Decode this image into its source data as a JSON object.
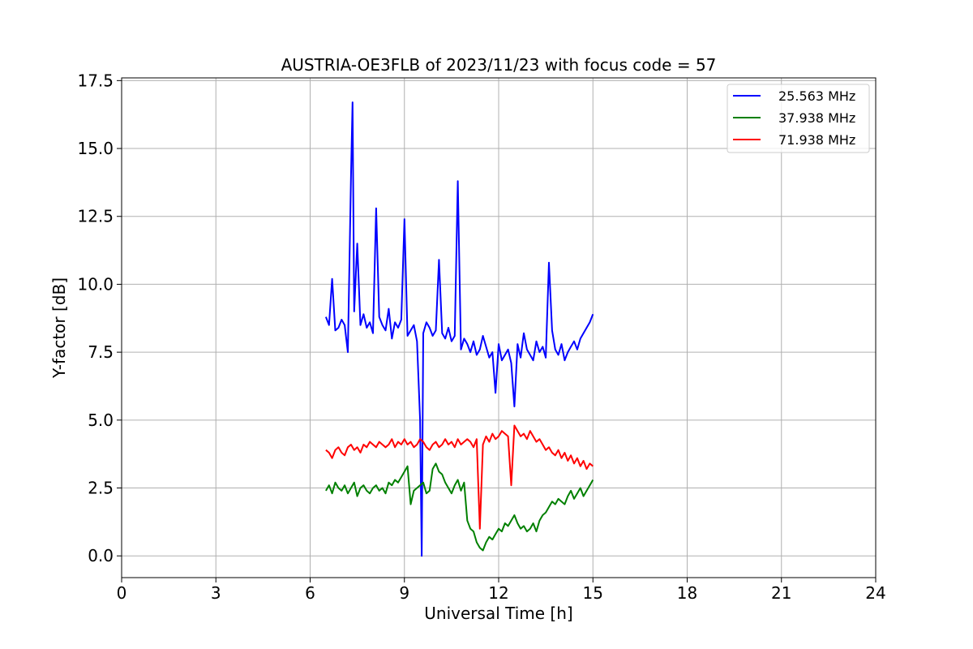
{
  "chart_data": {
    "type": "line",
    "title": "AUSTRIA-OE3FLB of 2023/11/23 with focus code = 57",
    "xlabel": "Universal Time [h]",
    "ylabel": "Y-factor [dB]",
    "xlim": [
      0,
      24
    ],
    "ylim": [
      -0.8,
      17.6
    ],
    "xticks": [
      0,
      3,
      6,
      9,
      12,
      15,
      18,
      21,
      24
    ],
    "xtick_labels": [
      "0",
      "3",
      "6",
      "9",
      "12",
      "15",
      "18",
      "21",
      "24"
    ],
    "yticks": [
      0.0,
      2.5,
      5.0,
      7.5,
      10.0,
      12.5,
      15.0,
      17.5
    ],
    "ytick_labels": [
      "0.0",
      "2.5",
      "5.0",
      "7.5",
      "10.0",
      "12.5",
      "15.0",
      "17.5"
    ],
    "grid": true,
    "legend_position": "top-right",
    "series": [
      {
        "name": "25.563 MHz",
        "color": "#0000ff",
        "x": [
          6.5,
          6.6,
          6.7,
          6.8,
          6.9,
          7.0,
          7.1,
          7.2,
          7.3,
          7.35,
          7.4,
          7.5,
          7.6,
          7.7,
          7.8,
          7.9,
          8.0,
          8.1,
          8.2,
          8.3,
          8.4,
          8.5,
          8.6,
          8.7,
          8.8,
          8.9,
          9.0,
          9.1,
          9.2,
          9.3,
          9.4,
          9.5,
          9.55,
          9.6,
          9.7,
          9.8,
          9.9,
          10.0,
          10.1,
          10.2,
          10.3,
          10.4,
          10.5,
          10.6,
          10.7,
          10.8,
          10.9,
          11.0,
          11.1,
          11.2,
          11.3,
          11.4,
          11.5,
          11.6,
          11.7,
          11.8,
          11.9,
          12.0,
          12.1,
          12.2,
          12.3,
          12.4,
          12.5,
          12.6,
          12.7,
          12.8,
          12.9,
          13.0,
          13.1,
          13.2,
          13.3,
          13.4,
          13.5,
          13.6,
          13.7,
          13.8,
          13.9,
          14.0,
          14.1,
          14.2,
          14.3,
          14.4,
          14.5,
          14.6,
          14.7,
          14.8,
          14.9,
          15.0
        ],
        "y": [
          8.8,
          8.5,
          10.2,
          8.3,
          8.4,
          8.7,
          8.5,
          7.5,
          14.0,
          16.7,
          9.0,
          11.5,
          8.5,
          8.9,
          8.4,
          8.6,
          8.2,
          12.8,
          8.8,
          8.5,
          8.3,
          9.1,
          8.0,
          8.6,
          8.4,
          8.7,
          12.4,
          8.1,
          8.3,
          8.5,
          7.9,
          5.0,
          0.0,
          8.2,
          8.6,
          8.4,
          8.1,
          8.3,
          10.9,
          8.2,
          8.0,
          8.4,
          7.9,
          8.1,
          13.8,
          7.6,
          8.0,
          7.8,
          7.5,
          7.9,
          7.4,
          7.6,
          8.1,
          7.7,
          7.3,
          7.5,
          6.0,
          7.8,
          7.2,
          7.4,
          7.6,
          7.1,
          5.5,
          7.8,
          7.3,
          8.2,
          7.6,
          7.4,
          7.2,
          7.9,
          7.5,
          7.7,
          7.3,
          10.8,
          8.3,
          7.6,
          7.4,
          7.8,
          7.2,
          7.5,
          7.7,
          7.9,
          7.6,
          8.0,
          8.2,
          8.4,
          8.6,
          8.9
        ]
      },
      {
        "name": "37.938 MHz",
        "color": "#008000",
        "x": [
          6.5,
          6.6,
          6.7,
          6.8,
          6.9,
          7.0,
          7.1,
          7.2,
          7.3,
          7.4,
          7.5,
          7.6,
          7.7,
          7.8,
          7.9,
          8.0,
          8.1,
          8.2,
          8.3,
          8.4,
          8.5,
          8.6,
          8.7,
          8.8,
          8.9,
          9.0,
          9.1,
          9.2,
          9.3,
          9.4,
          9.5,
          9.6,
          9.7,
          9.8,
          9.9,
          10.0,
          10.1,
          10.2,
          10.3,
          10.4,
          10.5,
          10.6,
          10.7,
          10.8,
          10.9,
          11.0,
          11.1,
          11.2,
          11.3,
          11.4,
          11.5,
          11.6,
          11.7,
          11.8,
          11.9,
          12.0,
          12.1,
          12.2,
          12.3,
          12.4,
          12.5,
          12.6,
          12.7,
          12.8,
          12.9,
          13.0,
          13.1,
          13.2,
          13.3,
          13.4,
          13.5,
          13.6,
          13.7,
          13.8,
          13.9,
          14.0,
          14.1,
          14.2,
          14.3,
          14.4,
          14.5,
          14.6,
          14.7,
          14.8,
          14.9,
          15.0
        ],
        "y": [
          2.4,
          2.6,
          2.3,
          2.7,
          2.5,
          2.4,
          2.6,
          2.3,
          2.5,
          2.7,
          2.2,
          2.5,
          2.6,
          2.4,
          2.3,
          2.5,
          2.6,
          2.4,
          2.5,
          2.3,
          2.7,
          2.6,
          2.8,
          2.7,
          2.9,
          3.1,
          3.3,
          1.9,
          2.4,
          2.5,
          2.6,
          2.7,
          2.3,
          2.4,
          3.2,
          3.4,
          3.1,
          3.0,
          2.7,
          2.5,
          2.3,
          2.6,
          2.8,
          2.4,
          2.7,
          1.3,
          1.0,
          0.9,
          0.5,
          0.3,
          0.2,
          0.5,
          0.7,
          0.6,
          0.8,
          1.0,
          0.9,
          1.2,
          1.1,
          1.3,
          1.5,
          1.2,
          1.0,
          1.1,
          0.9,
          1.0,
          1.2,
          0.9,
          1.3,
          1.5,
          1.6,
          1.8,
          2.0,
          1.9,
          2.1,
          2.0,
          1.9,
          2.2,
          2.4,
          2.1,
          2.3,
          2.5,
          2.2,
          2.4,
          2.6,
          2.8
        ]
      },
      {
        "name": "71.938 MHz",
        "color": "#ff0000",
        "x": [
          6.5,
          6.6,
          6.7,
          6.8,
          6.9,
          7.0,
          7.1,
          7.2,
          7.3,
          7.4,
          7.5,
          7.6,
          7.7,
          7.8,
          7.9,
          8.0,
          8.1,
          8.2,
          8.3,
          8.4,
          8.5,
          8.6,
          8.7,
          8.8,
          8.9,
          9.0,
          9.1,
          9.2,
          9.3,
          9.4,
          9.5,
          9.6,
          9.7,
          9.8,
          9.9,
          10.0,
          10.1,
          10.2,
          10.3,
          10.4,
          10.5,
          10.6,
          10.7,
          10.8,
          10.9,
          11.0,
          11.1,
          11.2,
          11.3,
          11.4,
          11.5,
          11.6,
          11.7,
          11.8,
          11.9,
          12.0,
          12.1,
          12.2,
          12.3,
          12.4,
          12.5,
          12.6,
          12.7,
          12.8,
          12.9,
          13.0,
          13.1,
          13.2,
          13.3,
          13.4,
          13.5,
          13.6,
          13.7,
          13.8,
          13.9,
          14.0,
          14.1,
          14.2,
          14.3,
          14.4,
          14.5,
          14.6,
          14.7,
          14.8,
          14.9,
          15.0
        ],
        "y": [
          3.9,
          3.8,
          3.6,
          3.9,
          4.0,
          3.8,
          3.7,
          4.0,
          4.1,
          3.9,
          4.0,
          3.8,
          4.1,
          4.0,
          4.2,
          4.1,
          4.0,
          4.2,
          4.1,
          4.0,
          4.1,
          4.3,
          4.0,
          4.2,
          4.1,
          4.3,
          4.1,
          4.2,
          4.0,
          4.1,
          4.3,
          4.2,
          4.0,
          3.9,
          4.1,
          4.2,
          4.0,
          4.1,
          4.3,
          4.1,
          4.2,
          4.0,
          4.3,
          4.1,
          4.2,
          4.3,
          4.2,
          4.0,
          4.3,
          1.0,
          4.1,
          4.4,
          4.2,
          4.5,
          4.3,
          4.4,
          4.6,
          4.5,
          4.4,
          2.6,
          4.8,
          4.6,
          4.4,
          4.5,
          4.3,
          4.6,
          4.4,
          4.2,
          4.3,
          4.1,
          3.9,
          4.0,
          3.8,
          3.7,
          3.9,
          3.6,
          3.8,
          3.5,
          3.7,
          3.4,
          3.6,
          3.3,
          3.5,
          3.2,
          3.4,
          3.3
        ]
      }
    ]
  }
}
